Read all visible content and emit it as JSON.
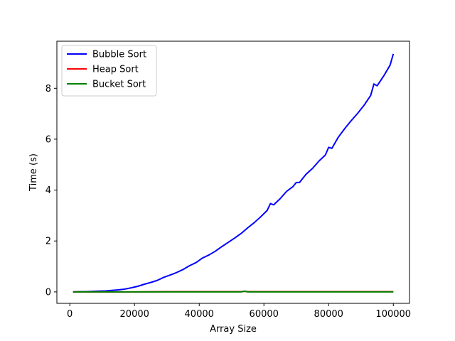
{
  "chart_data": {
    "type": "line",
    "xlabel": "Array Size",
    "ylabel": "Time (s)",
    "xlim": [
      -4000,
      105000
    ],
    "ylim": [
      -0.45,
      9.85
    ],
    "xticks": [
      0,
      20000,
      40000,
      60000,
      80000,
      100000
    ],
    "yticks": [
      0,
      2,
      4,
      6,
      8
    ],
    "grid": false,
    "legend_position": "top-left",
    "series": [
      {
        "name": "Bubble Sort",
        "color": "#0000ff",
        "x": [
          1000,
          3000,
          5000,
          7000,
          9000,
          11000,
          13000,
          15000,
          17000,
          19000,
          21000,
          23000,
          25000,
          27000,
          29000,
          31000,
          33000,
          35000,
          37000,
          39000,
          41000,
          43000,
          45000,
          47000,
          49000,
          51000,
          53000,
          55000,
          57000,
          59000,
          61000,
          62000,
          63000,
          65000,
          67000,
          69000,
          70000,
          71000,
          73000,
          75000,
          77000,
          79000,
          80000,
          81000,
          83000,
          85000,
          87000,
          89000,
          91000,
          93000,
          94000,
          95000,
          97000,
          99000,
          100000
        ],
        "y": [
          0.0,
          0.01,
          0.01,
          0.02,
          0.03,
          0.04,
          0.06,
          0.08,
          0.11,
          0.16,
          0.22,
          0.3,
          0.37,
          0.45,
          0.57,
          0.66,
          0.76,
          0.88,
          1.03,
          1.15,
          1.33,
          1.45,
          1.6,
          1.78,
          1.95,
          2.12,
          2.3,
          2.52,
          2.72,
          2.95,
          3.2,
          3.47,
          3.42,
          3.66,
          3.95,
          4.14,
          4.3,
          4.3,
          4.62,
          4.85,
          5.14,
          5.38,
          5.68,
          5.64,
          6.08,
          6.42,
          6.73,
          7.02,
          7.34,
          7.72,
          8.17,
          8.1,
          8.48,
          8.91,
          9.35
        ]
      },
      {
        "name": "Heap Sort",
        "color": "#ff0000",
        "x": [
          1000,
          10000,
          20000,
          30000,
          40000,
          50000,
          53000,
          54000,
          55000,
          60000,
          70000,
          80000,
          90000,
          100000
        ],
        "y": [
          0.0,
          0.0,
          0.0,
          0.01,
          0.01,
          0.01,
          0.01,
          0.02,
          0.01,
          0.01,
          0.01,
          0.01,
          0.01,
          0.01
        ]
      },
      {
        "name": "Bucket Sort",
        "color": "#008000",
        "x": [
          1000,
          10000,
          20000,
          30000,
          40000,
          50000,
          53000,
          54000,
          55000,
          60000,
          70000,
          80000,
          90000,
          100000
        ],
        "y": [
          0.0,
          0.0,
          0.0,
          0.0,
          0.0,
          0.0,
          0.0,
          0.03,
          0.0,
          0.0,
          0.0,
          0.0,
          0.0,
          0.0
        ]
      }
    ]
  }
}
